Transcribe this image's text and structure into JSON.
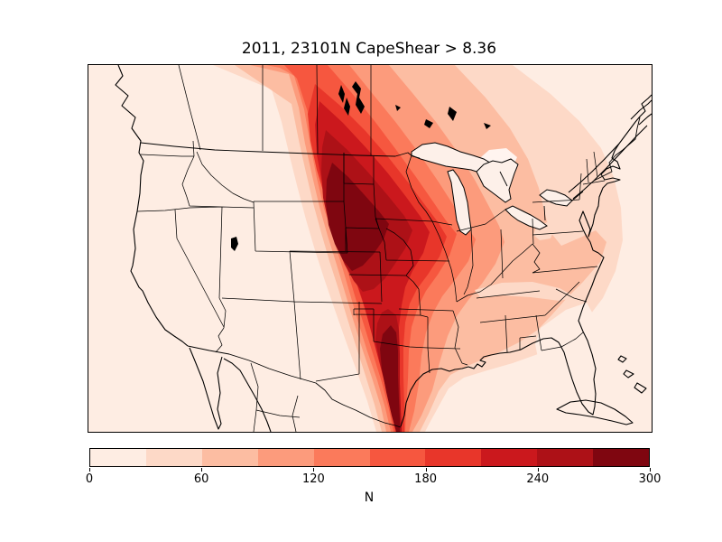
{
  "figure": {
    "title": "2011, 23101N CapeShear > 8.36",
    "background": "#ffffff"
  },
  "colorbar": {
    "label": "N",
    "orientation": "horizontal",
    "min": 0,
    "max": 300,
    "ticks": [
      0,
      60,
      120,
      180,
      240,
      300
    ],
    "tick_labels": [
      "0",
      "60",
      "120",
      "180",
      "240",
      "300"
    ]
  },
  "chart_data": {
    "type": "heatmap",
    "subtype": "filled-contour-map",
    "title": "2011, 23101N CapeShear > 8.36",
    "colorbar_label": "N",
    "levels": [
      0,
      30,
      60,
      90,
      120,
      150,
      180,
      210,
      240,
      270,
      300
    ],
    "colors": [
      "#feede3",
      "#fdd9c7",
      "#fcbda2",
      "#fc9b7c",
      "#fb7a5b",
      "#f6573f",
      "#e8362a",
      "#cb181d",
      "#ad1117",
      "#7f0610"
    ],
    "pale_patch_color": "#fff4ef",
    "lake_fill_color": "#fdf0e9",
    "line_color": "#000000",
    "map_region": "Contiguous United States with southern Canada, northern Mexico, Baja California, Cuba and the Bahamas",
    "maxima": [
      {
        "location": "Central Great Plains (Nebraska / southern South Dakota)",
        "value": "> 270"
      },
      {
        "location": "Central and south Texas, plume reaching the Gulf coast near Brownsville",
        "value": "> 270"
      }
    ],
    "minima": [
      {
        "location": "West Coast / Great Basin, Florida peninsula, New England, oceans",
        "value": "0 - 30"
      },
      {
        "location": "Local pale patches over Tennessee, West Virginia, central Georgia and near Georgian Bay",
        "value": "0 - 60"
      }
    ],
    "gradient_notes": "Values increase steeply from the Rockies eastward into a dark NW-SE band from Montana through Nebraska into Texas; moderate values (60-120) spread east over the Midwest and mid-Atlantic; values fall below 30 along the coasts of the Southeast and in the far West."
  }
}
